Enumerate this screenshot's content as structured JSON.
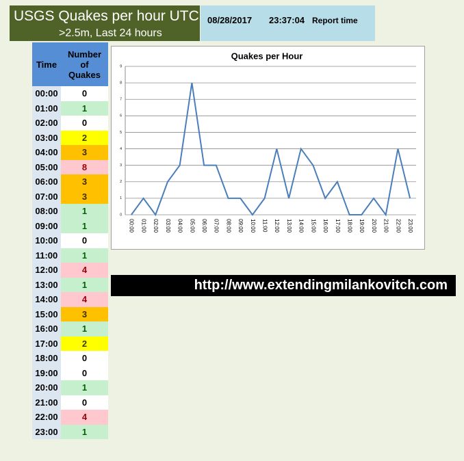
{
  "header": {
    "title": "USGS Quakes per hour UTC",
    "subtitle": ">2.5m, Last 24 hours",
    "date": "08/28/2017",
    "time": "23:37:04",
    "report_label": "Report time"
  },
  "table": {
    "headers": [
      "Time",
      "Number of Quakes"
    ],
    "row_fills": [
      "#ffffff",
      "#c6efce",
      "#ffffff",
      "#ffff00",
      "#ffc000",
      "#ffc7ce",
      "#ffc000",
      "#ffc000",
      "#c6efce",
      "#c6efce",
      "#ffffff",
      "#c6efce",
      "#ffc7ce",
      "#c6efce",
      "#ffc7ce",
      "#ffc000",
      "#c6efce",
      "#ffff00",
      "#ffffff",
      "#ffffff",
      "#c6efce",
      "#ffffff",
      "#ffc7ce",
      "#c6efce"
    ],
    "row_text_colors": [
      "#000000",
      "#006100",
      "#000000",
      "#3f3f00",
      "#3f2f00",
      "#9c0006",
      "#3f2f00",
      "#3f2f00",
      "#006100",
      "#006100",
      "#000000",
      "#006100",
      "#9c0006",
      "#006100",
      "#9c0006",
      "#3f2f00",
      "#006100",
      "#3f3f00",
      "#000000",
      "#000000",
      "#006100",
      "#000000",
      "#9c0006",
      "#006100"
    ]
  },
  "chart_data": {
    "type": "line",
    "title": "Quakes per Hour",
    "categories": [
      "00:00",
      "01:00",
      "02:00",
      "03:00",
      "04:00",
      "05:00",
      "06:00",
      "07:00",
      "08:00",
      "09:00",
      "10:00",
      "11:00",
      "12:00",
      "13:00",
      "14:00",
      "15:00",
      "16:00",
      "17:00",
      "18:00",
      "19:00",
      "20:00",
      "21:00",
      "22:00",
      "23:00"
    ],
    "values": [
      0,
      1,
      0,
      2,
      3,
      8,
      3,
      3,
      1,
      1,
      0,
      1,
      4,
      1,
      4,
      3,
      1,
      2,
      0,
      0,
      1,
      0,
      4,
      1
    ],
    "color": "#4a7ebb",
    "ylim": [
      0,
      9
    ],
    "yticks": [
      0,
      1,
      2,
      3,
      4,
      5,
      6,
      7,
      8,
      9
    ],
    "grid": true
  },
  "url": "http://www.extendingmilankovitch.com"
}
